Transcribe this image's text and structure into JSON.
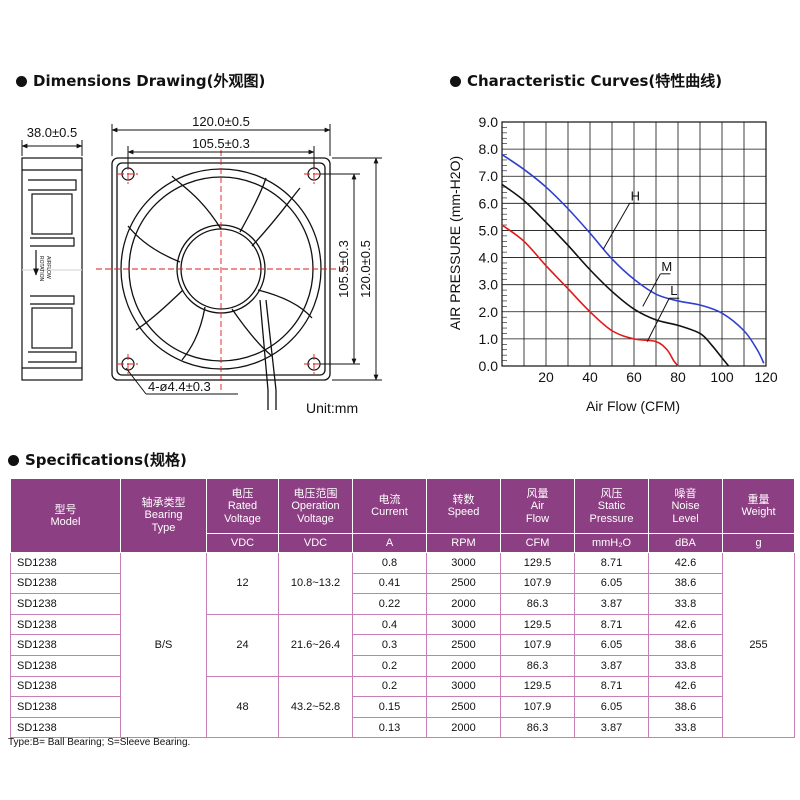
{
  "sections": {
    "dimensions_title": "Dimensions Drawing(外观图)",
    "curves_title": "Characteristic Curves(特性曲线)",
    "specs_title": "Specifications(规格)"
  },
  "dimensions": {
    "depth": "38.0±0.5",
    "outer_width": "120.0±0.5",
    "hole_spacing_h": "105.5±0.3",
    "hole_spacing_v": "105.5±0.3",
    "outer_height": "120.0±0.5",
    "holes": "4-ø4.4±0.3",
    "unit": "Unit:mm",
    "side_labels": [
      "AIRFLOW",
      "ROTATION"
    ]
  },
  "chart_data": {
    "type": "line",
    "xlabel": "Air Flow (CFM)",
    "ylabel": "AIR PRESSURE (mm-H2O)",
    "xlim": [
      0,
      120
    ],
    "ylim": [
      0,
      9
    ],
    "x_ticks": [
      20,
      40,
      60,
      80,
      100,
      120
    ],
    "y_ticks": [
      "0.0",
      "1.0",
      "2.0",
      "3.0",
      "4.0",
      "5.0",
      "6.0",
      "7.0",
      "8.0",
      "9.0"
    ],
    "grid": true,
    "series": [
      {
        "name": "H",
        "color": "#2f3fd0",
        "points": [
          [
            0,
            7.8
          ],
          [
            10,
            7.25
          ],
          [
            20,
            6.6
          ],
          [
            30,
            5.8
          ],
          [
            40,
            4.9
          ],
          [
            50,
            3.95
          ],
          [
            60,
            3.2
          ],
          [
            70,
            2.65
          ],
          [
            80,
            2.4
          ],
          [
            90,
            2.25
          ],
          [
            100,
            1.95
          ],
          [
            110,
            1.3
          ],
          [
            116,
            0.6
          ],
          [
            119,
            0.1
          ]
        ]
      },
      {
        "name": "M",
        "color": "#111111",
        "points": [
          [
            0,
            6.7
          ],
          [
            10,
            6.1
          ],
          [
            20,
            5.3
          ],
          [
            30,
            4.45
          ],
          [
            40,
            3.55
          ],
          [
            50,
            2.75
          ],
          [
            60,
            2.1
          ],
          [
            70,
            1.7
          ],
          [
            80,
            1.5
          ],
          [
            90,
            1.2
          ],
          [
            95,
            0.8
          ],
          [
            100,
            0.3
          ],
          [
            103,
            0
          ]
        ]
      },
      {
        "name": "L",
        "color": "#e01a1a",
        "points": [
          [
            0,
            5.2
          ],
          [
            10,
            4.6
          ],
          [
            20,
            3.7
          ],
          [
            30,
            2.85
          ],
          [
            40,
            2.0
          ],
          [
            50,
            1.3
          ],
          [
            60,
            1.0
          ],
          [
            70,
            0.9
          ],
          [
            75,
            0.6
          ],
          [
            78,
            0.2
          ],
          [
            80,
            0
          ]
        ]
      }
    ]
  },
  "table": {
    "headers": [
      {
        "cn": "型号",
        "en": "Model",
        "unit": ""
      },
      {
        "cn": "轴承类型",
        "en": "Bearing\nType",
        "unit": ""
      },
      {
        "cn": "电压",
        "en": "Rated\nVoltage",
        "unit": "VDC"
      },
      {
        "cn": "电压范围",
        "en": "Operation\nVoltage",
        "unit": "VDC"
      },
      {
        "cn": "电流",
        "en": "Current",
        "unit": "A"
      },
      {
        "cn": "转数",
        "en": "Speed",
        "unit": "RPM"
      },
      {
        "cn": "风量",
        "en": "Air\nFlow",
        "unit": "CFM"
      },
      {
        "cn": "风压",
        "en": "Static\nPressure",
        "unit": "mmH₂O"
      },
      {
        "cn": "噪音",
        "en": "Noise\nLevel",
        "unit": "dBA"
      },
      {
        "cn": "重量",
        "en": "Weight",
        "unit": "g"
      }
    ],
    "bearing": "B/S",
    "weight": "255",
    "groups": [
      {
        "voltage": "12",
        "range": "10.8~13.2"
      },
      {
        "voltage": "24",
        "range": "21.6~26.4"
      },
      {
        "voltage": "48",
        "range": "43.2~52.8"
      }
    ],
    "rows": [
      {
        "model": "SD1238",
        "current": "0.8",
        "speed": "3000",
        "flow": "129.5",
        "pressure": "8.71",
        "noise": "42.6"
      },
      {
        "model": "SD1238",
        "current": "0.41",
        "speed": "2500",
        "flow": "107.9",
        "pressure": "6.05",
        "noise": "38.6"
      },
      {
        "model": "SD1238",
        "current": "0.22",
        "speed": "2000",
        "flow": "86.3",
        "pressure": "3.87",
        "noise": "33.8"
      },
      {
        "model": "SD1238",
        "current": "0.4",
        "speed": "3000",
        "flow": "129.5",
        "pressure": "8.71",
        "noise": "42.6"
      },
      {
        "model": "SD1238",
        "current": "0.3",
        "speed": "2500",
        "flow": "107.9",
        "pressure": "6.05",
        "noise": "38.6"
      },
      {
        "model": "SD1238",
        "current": "0.2",
        "speed": "2000",
        "flow": "86.3",
        "pressure": "3.87",
        "noise": "33.8"
      },
      {
        "model": "SD1238",
        "current": "0.2",
        "speed": "3000",
        "flow": "129.5",
        "pressure": "8.71",
        "noise": "42.6"
      },
      {
        "model": "SD1238",
        "current": "0.15",
        "speed": "2500",
        "flow": "107.9",
        "pressure": "6.05",
        "noise": "38.6"
      },
      {
        "model": "SD1238",
        "current": "0.13",
        "speed": "2000",
        "flow": "86.3",
        "pressure": "3.87",
        "noise": "33.8"
      }
    ]
  },
  "footnote": "Type:B= Ball Bearing; S=Sleeve  Bearing."
}
